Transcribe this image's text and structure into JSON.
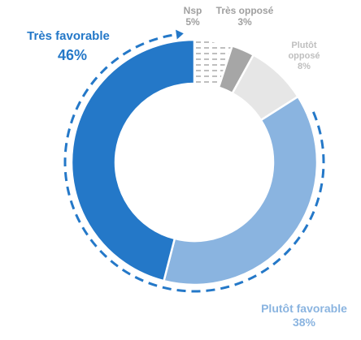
{
  "chart_data": {
    "type": "pie",
    "categories": [
      "Nsp",
      "Très opposé",
      "Plutôt opposé",
      "Plutôt favorable",
      "Très favorable"
    ],
    "values": [
      5,
      3,
      8,
      38,
      46
    ],
    "value_labels": [
      "5%",
      "3%",
      "8%",
      "38%",
      "46%"
    ],
    "colors": [
      "#7f7f7f",
      "#a6a6a6",
      "#e6e6e6",
      "#8ab4e0",
      "#2478c8"
    ],
    "hatched": [
      true,
      false,
      false,
      false,
      false
    ]
  }
}
